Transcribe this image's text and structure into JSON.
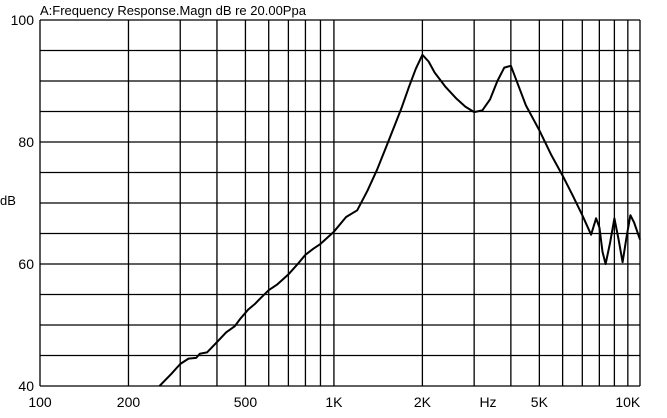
{
  "chart_data": {
    "type": "line",
    "title": "A:Frequency Response.Magn dB re 20.00Ppa",
    "xlabel": "Hz",
    "ylabel": "dB",
    "xscale": "log",
    "xlim": [
      100,
      11000
    ],
    "ylim": [
      40,
      100
    ],
    "grid": true,
    "x_tick_labels": [
      {
        "value": 100,
        "label": "100"
      },
      {
        "value": 200,
        "label": "200"
      },
      {
        "value": 500,
        "label": "500"
      },
      {
        "value": 1000,
        "label": "1K"
      },
      {
        "value": 2000,
        "label": "2K"
      },
      {
        "value": 5000,
        "label": "5K"
      },
      {
        "value": 10000,
        "label": "10K"
      }
    ],
    "y_tick_labels": [
      {
        "value": 100,
        "label": "100"
      },
      {
        "value": 80,
        "label": "80"
      },
      {
        "value": 60,
        "label": "60"
      },
      {
        "value": 40,
        "label": "40"
      }
    ],
    "series": [
      {
        "color": "#000000",
        "x": [
          255,
          280,
          300,
          320,
          340,
          350,
          370,
          400,
          430,
          460,
          480,
          510,
          540,
          560,
          600,
          640,
          700,
          750,
          800,
          850,
          900,
          1000,
          1100,
          1200,
          1300,
          1400,
          1500,
          1600,
          1700,
          1800,
          1900,
          2000,
          2100,
          2200,
          2400,
          2600,
          2800,
          3000,
          3200,
          3400,
          3600,
          3800,
          4000,
          4200,
          4500,
          5000,
          5500,
          6000,
          6500,
          7000,
          7500,
          7800,
          8000,
          8200,
          8400,
          8700,
          9000,
          9300,
          9600,
          9900,
          10200,
          10500,
          11000
        ],
        "y": [
          40.0,
          42.0,
          43.6,
          44.5,
          44.6,
          45.3,
          45.5,
          47.2,
          48.8,
          49.8,
          51.0,
          52.5,
          53.5,
          54.3,
          55.7,
          56.6,
          58.3,
          59.9,
          61.5,
          62.5,
          63.3,
          65.3,
          67.7,
          68.8,
          72.0,
          75.4,
          79.0,
          82.4,
          85.6,
          89.0,
          92.0,
          94.3,
          93.2,
          91.4,
          89.0,
          87.2,
          85.8,
          84.9,
          85.2,
          87.0,
          90.0,
          92.2,
          92.5,
          89.8,
          86.0,
          81.9,
          77.8,
          74.5,
          71.2,
          68.0,
          64.8,
          67.5,
          66.0,
          62.0,
          60.0,
          63.5,
          67.5,
          64.0,
          60.3,
          64.5,
          68.0,
          66.8,
          64.0
        ]
      }
    ]
  }
}
